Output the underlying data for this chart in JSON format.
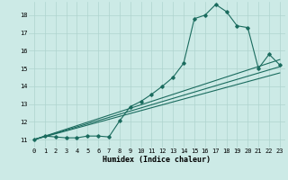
{
  "xlabel": "Humidex (Indice chaleur)",
  "bg_color": "#cceae6",
  "grid_color": "#aed4cf",
  "line_color": "#1a6b5e",
  "xlim": [
    -0.5,
    23.5
  ],
  "ylim": [
    10.55,
    18.75
  ],
  "yticks": [
    11,
    12,
    13,
    14,
    15,
    16,
    17,
    18
  ],
  "xticks": [
    0,
    1,
    2,
    3,
    4,
    5,
    6,
    7,
    8,
    9,
    10,
    11,
    12,
    13,
    14,
    15,
    16,
    17,
    18,
    19,
    20,
    21,
    22,
    23
  ],
  "curve_x": [
    0,
    1,
    2,
    3,
    4,
    5,
    6,
    7,
    8,
    9,
    10,
    11,
    12,
    13,
    14,
    15,
    16,
    17,
    18,
    19,
    20,
    21,
    22,
    23
  ],
  "curve_y": [
    11.0,
    11.2,
    11.15,
    11.1,
    11.1,
    11.2,
    11.2,
    11.15,
    12.05,
    12.85,
    13.15,
    13.55,
    14.0,
    14.5,
    15.3,
    17.8,
    18.0,
    18.6,
    18.2,
    17.4,
    17.3,
    15.0,
    15.8,
    15.2
  ],
  "line1_x": [
    0,
    23
  ],
  "line1_y": [
    11.0,
    15.5
  ],
  "line2_x": [
    0,
    23
  ],
  "line2_y": [
    11.0,
    15.1
  ],
  "line3_x": [
    0,
    23
  ],
  "line3_y": [
    11.0,
    14.75
  ],
  "xlabel_fontsize": 6.0,
  "tick_fontsize": 5.0
}
